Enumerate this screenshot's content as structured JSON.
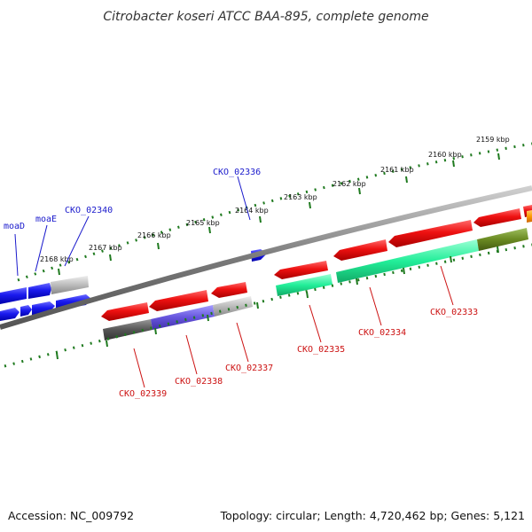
{
  "title": "Citrobacter koseri ATCC BAA-895, complete genome",
  "footer": {
    "accession": "Accession: NC_009792",
    "summary": "Topology: circular; Length: 4,720,462 bp; Genes: 5,121"
  },
  "ruler_labels": [
    "2159 kbp",
    "2160 kbp",
    "2161 kbp",
    "2162 kbp",
    "2163 kbp",
    "2164 kbp",
    "2165 kbp",
    "2166 kbp",
    "2167 kbp",
    "2168 kbp"
  ],
  "gene_labels_top": [
    "moaD",
    "moaE",
    "CKO_02340",
    "CKO_02336"
  ],
  "gene_labels_bottom": [
    "CKO_02339",
    "CKO_02338",
    "CKO_02337",
    "CKO_02335",
    "CKO_02334",
    "CKO_02333"
  ],
  "colors": {
    "forward_gene": "#1a1aee",
    "reverse_gene": "#ee1111",
    "tick": "#1f7a1f",
    "backbone": "#7a7a7a",
    "cog_green": "#22ee99",
    "cog_olive": "#6a8a22",
    "cog_purple": "#6655dd",
    "cog_dark": "#555555",
    "cog_grey": "#bbbbbb",
    "cog_orange": "#ff9900"
  }
}
